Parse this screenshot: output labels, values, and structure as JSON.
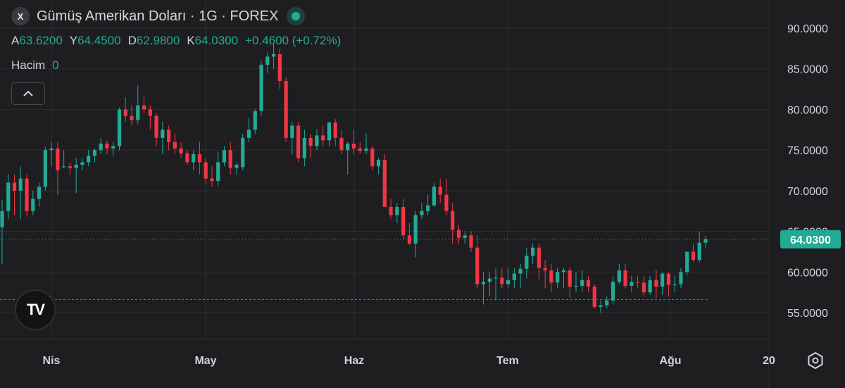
{
  "header": {
    "symbol_badge": "X",
    "title": "Gümüş Amerikan Doları · 1G · FOREX",
    "status_color": "#22ab94"
  },
  "ohlc": {
    "open_label": "A",
    "open": "63.6200",
    "high_label": "Y",
    "high": "64.4500",
    "low_label": "D",
    "low": "62.9800",
    "close_label": "K",
    "close": "64.0300",
    "change": "+0.4600 (+0.72%)"
  },
  "volume": {
    "label": "Hacim",
    "value": "0"
  },
  "logo": {
    "text": "TV"
  },
  "icons": {
    "collapse": "chevron-up-icon",
    "settings": "settings-hexagon-icon"
  },
  "colors": {
    "background": "#1e1e21",
    "grid": "#2e2e32",
    "up": "#22ab94",
    "down": "#f23645",
    "price_label_bg": "#22ab94"
  },
  "chart_data": {
    "type": "candlestick",
    "title": "Gümüş Amerikan Doları · 1G · FOREX",
    "y_ticks": [
      "90.0000",
      "85.0000",
      "80.0000",
      "75.0000",
      "70.0000",
      "65.0000",
      "60.0000",
      "55.0000"
    ],
    "x_ticks": [
      "Nis",
      "May",
      "Haz",
      "Tem",
      "Ağu",
      "20"
    ],
    "ylim": [
      51,
      92
    ],
    "last_price": 64.03,
    "last_price_label": "64.0300",
    "reference_line": 56.6,
    "grid": true,
    "candles": [
      [
        65.5,
        68.9,
        61,
        67.5
      ],
      [
        67.5,
        72,
        66.5,
        71
      ],
      [
        71,
        72,
        67,
        70
      ],
      [
        70,
        73,
        66.5,
        71.5
      ],
      [
        71.5,
        72,
        66.8,
        67.5
      ],
      [
        67.5,
        70,
        67,
        69
      ],
      [
        69,
        71,
        68,
        70.5
      ],
      [
        70.5,
        75.4,
        70,
        75
      ],
      [
        75,
        76,
        73,
        75.2
      ],
      [
        75.2,
        76,
        69.5,
        72.5
      ],
      [
        72.9,
        75,
        72.8,
        73
      ],
      [
        73,
        73.5,
        72,
        72.8
      ],
      [
        72.8,
        74,
        69.7,
        73.2
      ],
      [
        73.2,
        74,
        72.5,
        73.5
      ],
      [
        73.5,
        75,
        73,
        74.3
      ],
      [
        74.3,
        75.2,
        73.5,
        75
      ],
      [
        75,
        76.5,
        74.5,
        75.8
      ],
      [
        75.8,
        76.2,
        74.5,
        75.2
      ],
      [
        75.2,
        76,
        74.2,
        75.5
      ],
      [
        75.5,
        80.2,
        75,
        80
      ],
      [
        80,
        81.5,
        78.5,
        79.2
      ],
      [
        79.2,
        80.5,
        78,
        78.7
      ],
      [
        78.7,
        83,
        78.2,
        80.5
      ],
      [
        80.5,
        81.5,
        79.5,
        80
      ],
      [
        80,
        80.5,
        77.5,
        79.2
      ],
      [
        79.2,
        79.5,
        75.5,
        76.5
      ],
      [
        76.5,
        78.5,
        74.5,
        77.5
      ],
      [
        77.5,
        78,
        75,
        76
      ],
      [
        76,
        77,
        74.5,
        75.2
      ],
      [
        75.2,
        76,
        74,
        74.6
      ],
      [
        74.6,
        75,
        73.2,
        73.5
      ],
      [
        73.5,
        75,
        72.5,
        74.5
      ],
      [
        74.5,
        76,
        72,
        73.5
      ],
      [
        73.5,
        74,
        70.8,
        71.5
      ],
      [
        71.5,
        73,
        70.5,
        71.2
      ],
      [
        71.2,
        74.8,
        70.6,
        73.5
      ],
      [
        73.5,
        75.5,
        73,
        75
      ],
      [
        75,
        76,
        72,
        72.8
      ],
      [
        72.8,
        73.5,
        72,
        73.2
      ],
      [
        72.9,
        77,
        72.5,
        76.5
      ],
      [
        76.5,
        79,
        76,
        77.5
      ],
      [
        77.5,
        80,
        77,
        79.8
      ],
      [
        79.8,
        86,
        79.2,
        85.5
      ],
      [
        85.5,
        87,
        84.5,
        86.5
      ],
      [
        86.5,
        88,
        85,
        86.8
      ],
      [
        86.8,
        87.5,
        82.5,
        83.5
      ],
      [
        83.5,
        84,
        76,
        76.5
      ],
      [
        76.5,
        78.5,
        74.5,
        78
      ],
      [
        78,
        78.5,
        73.5,
        74
      ],
      [
        74,
        77.5,
        73,
        76.5
      ],
      [
        76.5,
        77,
        74,
        75.5
      ],
      [
        75.5,
        77.5,
        75,
        76.8
      ],
      [
        76.8,
        78,
        75.5,
        76.2
      ],
      [
        76.2,
        78.5,
        75.5,
        78.4
      ],
      [
        78.4,
        78.8,
        75.5,
        76.5
      ],
      [
        76.5,
        77.5,
        74.5,
        75
      ],
      [
        75,
        76,
        72,
        75.8
      ],
      [
        75.8,
        77.5,
        74.5,
        75.2
      ],
      [
        75.2,
        76,
        74.5,
        74.9
      ],
      [
        74.9,
        77,
        74.5,
        75.2
      ],
      [
        75.2,
        75.5,
        72.5,
        73
      ],
      [
        73,
        74,
        72,
        73.8
      ],
      [
        73.8,
        74.5,
        68,
        68
      ],
      [
        68,
        69,
        66.5,
        67
      ],
      [
        67,
        68.5,
        66,
        68
      ],
      [
        68,
        69,
        64,
        64.5
      ],
      [
        64.5,
        66,
        63.3,
        63.5
      ],
      [
        63.5,
        67.5,
        61.8,
        67
      ],
      [
        67,
        68.5,
        66.5,
        67.5
      ],
      [
        67.5,
        69.5,
        67,
        68.2
      ],
      [
        68.2,
        71,
        68,
        70.5
      ],
      [
        70.5,
        71.5,
        68.5,
        69.5
      ],
      [
        69.5,
        71.5,
        67,
        67.5
      ],
      [
        67.5,
        68.5,
        63.5,
        65.2
      ],
      [
        65.2,
        65.8,
        63.5,
        64.2
      ],
      [
        64.2,
        65,
        63.5,
        64.5
      ],
      [
        64.5,
        65,
        62.5,
        63
      ],
      [
        63,
        64.5,
        58,
        58.5
      ],
      [
        58.5,
        60,
        56,
        58.8
      ],
      [
        58.8,
        60,
        57,
        59.2
      ],
      [
        59.2,
        60.5,
        56.5,
        59.3
      ],
      [
        59.3,
        60.5,
        58,
        58.5
      ],
      [
        58.5,
        60.5,
        58,
        59
      ],
      [
        59,
        60.5,
        58,
        59.8
      ],
      [
        59.8,
        61,
        58,
        60.4
      ],
      [
        60.4,
        63,
        59.2,
        62
      ],
      [
        62,
        63.5,
        61,
        63
      ],
      [
        63,
        63.5,
        59,
        60.5
      ],
      [
        60.5,
        61.5,
        58,
        60.2
      ],
      [
        60.2,
        61,
        57.5,
        58.7
      ],
      [
        58.7,
        60.5,
        58,
        60
      ],
      [
        60,
        60.5,
        58,
        60.2
      ],
      [
        60.2,
        60.6,
        56.8,
        58.2
      ],
      [
        58.2,
        60,
        57.5,
        58.3
      ],
      [
        58.3,
        60.2,
        57.5,
        59
      ],
      [
        59,
        59.5,
        57.5,
        58.2
      ],
      [
        58.2,
        58.5,
        55.5,
        55.7
      ],
      [
        55.7,
        56.5,
        55,
        55.9
      ],
      [
        55.9,
        57,
        55.5,
        56.5
      ],
      [
        56.5,
        59.5,
        56,
        58.8
      ],
      [
        58.8,
        61,
        58.5,
        60.2
      ],
      [
        60.2,
        61,
        58,
        58.3
      ],
      [
        58.3,
        59.5,
        57.5,
        58.8
      ],
      [
        58.8,
        59.5,
        58,
        58.7
      ],
      [
        58.7,
        59.5,
        57,
        57.5
      ],
      [
        57.5,
        59.5,
        57.2,
        59
      ],
      [
        59,
        60.3,
        56.8,
        58.2
      ],
      [
        58.2,
        60,
        57.2,
        59.8
      ],
      [
        59.8,
        60,
        57,
        58.4
      ],
      [
        58.4,
        59.5,
        57.5,
        58.5
      ],
      [
        58.5,
        60.5,
        58,
        60
      ],
      [
        60,
        62.5,
        59.6,
        62.5
      ],
      [
        62.5,
        63.5,
        61.2,
        61.5
      ],
      [
        61.5,
        65,
        61.2,
        63.6
      ],
      [
        63.6,
        64.45,
        62.98,
        64.03
      ]
    ]
  }
}
